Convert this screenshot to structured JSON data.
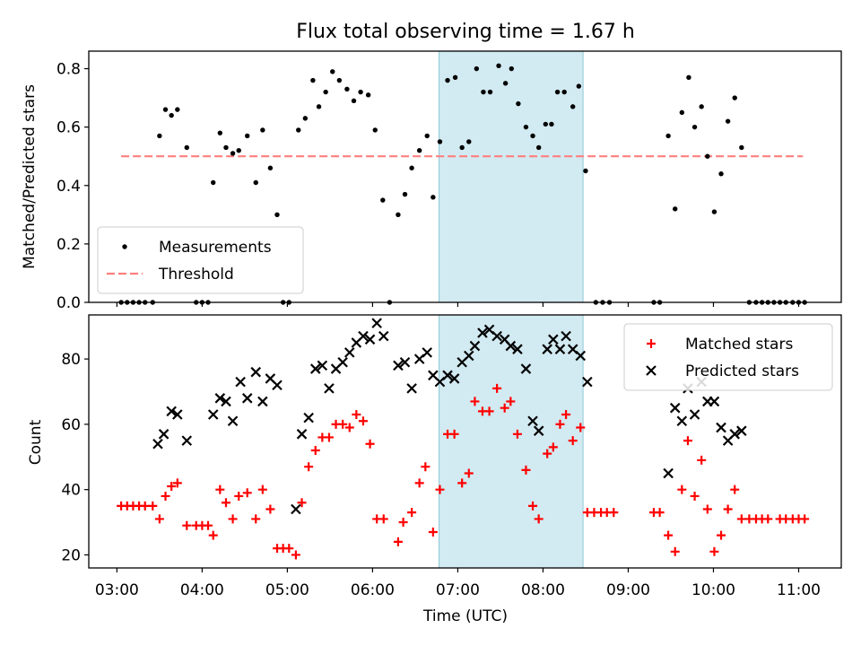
{
  "chart_data": [
    {
      "type": "scatter",
      "title": "Flux total observing time = 1.67 h",
      "xlabel": "",
      "ylabel": "Matched/Predicted stars",
      "ylim": [
        0,
        0.86
      ],
      "yticks": [
        0.0,
        0.2,
        0.4,
        0.6,
        0.8
      ],
      "ytick_labels": [
        "0.0",
        "0.2",
        "0.4",
        "0.6",
        "0.8"
      ],
      "xlim": [
        2.67,
        11.5
      ],
      "xticks": [
        3,
        4,
        5,
        6,
        7,
        8,
        9,
        10,
        11
      ],
      "shaded_span": {
        "x0": 6.78,
        "x1": 8.47,
        "color": "#add8e6"
      },
      "legend": {
        "placement": "lower-left",
        "entries": [
          "Measurements",
          "Threshold"
        ]
      },
      "threshold": {
        "name": "Threshold",
        "value": 0.5,
        "x_range": [
          3.05,
          11.05
        ],
        "color": "#ff7f7f"
      },
      "series": [
        {
          "name": "Measurements",
          "color": "#000000",
          "points": [
            [
              3.05,
              0
            ],
            [
              3.12,
              0
            ],
            [
              3.19,
              0
            ],
            [
              3.26,
              0
            ],
            [
              3.33,
              0
            ],
            [
              3.42,
              0
            ],
            [
              3.5,
              0.57
            ],
            [
              3.57,
              0.66
            ],
            [
              3.64,
              0.64
            ],
            [
              3.71,
              0.66
            ],
            [
              3.82,
              0.53
            ],
            [
              3.93,
              0
            ],
            [
              4.0,
              0
            ],
            [
              4.07,
              0
            ],
            [
              4.13,
              0.41
            ],
            [
              4.21,
              0.58
            ],
            [
              4.28,
              0.53
            ],
            [
              4.36,
              0.51
            ],
            [
              4.43,
              0.52
            ],
            [
              4.53,
              0.57
            ],
            [
              4.63,
              0.41
            ],
            [
              4.71,
              0.59
            ],
            [
              4.8,
              0.46
            ],
            [
              4.88,
              0.3
            ],
            [
              4.95,
              0
            ],
            [
              5.02,
              0
            ],
            [
              5.13,
              0.59
            ],
            [
              5.21,
              0.63
            ],
            [
              5.3,
              0.76
            ],
            [
              5.37,
              0.67
            ],
            [
              5.45,
              0.72
            ],
            [
              5.53,
              0.79
            ],
            [
              5.61,
              0.76
            ],
            [
              5.7,
              0.73
            ],
            [
              5.78,
              0.69
            ],
            [
              5.86,
              0.72
            ],
            [
              5.95,
              0.71
            ],
            [
              6.03,
              0.59
            ],
            [
              6.12,
              0.35
            ],
            [
              6.2,
              0
            ],
            [
              6.3,
              0.3
            ],
            [
              6.38,
              0.37
            ],
            [
              6.46,
              0.46
            ],
            [
              6.55,
              0.52
            ],
            [
              6.64,
              0.57
            ],
            [
              6.71,
              0.36
            ],
            [
              6.79,
              0.55
            ],
            [
              6.88,
              0.76
            ],
            [
              6.97,
              0.77
            ],
            [
              7.05,
              0.53
            ],
            [
              7.13,
              0.55
            ],
            [
              7.22,
              0.8
            ],
            [
              7.3,
              0.72
            ],
            [
              7.38,
              0.72
            ],
            [
              7.48,
              0.81
            ],
            [
              7.56,
              0.75
            ],
            [
              7.63,
              0.8
            ],
            [
              7.71,
              0.68
            ],
            [
              7.8,
              0.6
            ],
            [
              7.88,
              0.57
            ],
            [
              7.95,
              0.53
            ],
            [
              8.03,
              0.61
            ],
            [
              8.1,
              0.61
            ],
            [
              8.17,
              0.72
            ],
            [
              8.25,
              0.72
            ],
            [
              8.35,
              0.67
            ],
            [
              8.42,
              0.74
            ],
            [
              8.5,
              0.45
            ],
            [
              8.62,
              0
            ],
            [
              8.7,
              0
            ],
            [
              8.78,
              0
            ],
            [
              9.3,
              0
            ],
            [
              9.37,
              0
            ],
            [
              9.47,
              0.57
            ],
            [
              9.55,
              0.32
            ],
            [
              9.63,
              0.65
            ],
            [
              9.71,
              0.77
            ],
            [
              9.78,
              0.6
            ],
            [
              9.86,
              0.67
            ],
            [
              9.93,
              0.5
            ],
            [
              10.01,
              0.31
            ],
            [
              10.09,
              0.44
            ],
            [
              10.17,
              0.62
            ],
            [
              10.25,
              0.7
            ],
            [
              10.33,
              0.53
            ],
            [
              10.42,
              0
            ],
            [
              10.5,
              0
            ],
            [
              10.57,
              0
            ],
            [
              10.64,
              0
            ],
            [
              10.71,
              0
            ],
            [
              10.78,
              0
            ],
            [
              10.85,
              0
            ],
            [
              10.93,
              0
            ],
            [
              11.0,
              0
            ],
            [
              11.07,
              0
            ]
          ]
        }
      ]
    },
    {
      "type": "scatter",
      "title": "",
      "xlabel": "Time (UTC)",
      "ylabel": "Count",
      "ylim": [
        16,
        93.5
      ],
      "yticks": [
        20,
        40,
        60,
        80
      ],
      "ytick_labels": [
        "20",
        "40",
        "60",
        "80"
      ],
      "xlim": [
        2.67,
        11.5
      ],
      "xticks": [
        3,
        4,
        5,
        6,
        7,
        8,
        9,
        10,
        11
      ],
      "xtick_labels": [
        "03:00",
        "04:00",
        "05:00",
        "06:00",
        "07:00",
        "08:00",
        "09:00",
        "10:00",
        "11:00"
      ],
      "shaded_span": {
        "x0": 6.78,
        "x1": 8.47,
        "color": "#add8e6"
      },
      "legend": {
        "placement": "top-right",
        "entries": [
          "Matched stars",
          "Predicted stars"
        ]
      },
      "series": [
        {
          "name": "Matched stars",
          "color": "#ff0000",
          "marker": "plus",
          "points": [
            [
              3.05,
              35
            ],
            [
              3.12,
              35
            ],
            [
              3.19,
              35
            ],
            [
              3.26,
              35
            ],
            [
              3.33,
              35
            ],
            [
              3.42,
              35
            ],
            [
              3.5,
              31
            ],
            [
              3.57,
              38
            ],
            [
              3.64,
              41
            ],
            [
              3.71,
              42
            ],
            [
              3.82,
              29
            ],
            [
              3.93,
              29
            ],
            [
              4.0,
              29
            ],
            [
              4.07,
              29
            ],
            [
              4.13,
              26
            ],
            [
              4.21,
              40
            ],
            [
              4.28,
              36
            ],
            [
              4.36,
              31
            ],
            [
              4.43,
              38
            ],
            [
              4.53,
              39
            ],
            [
              4.63,
              31
            ],
            [
              4.71,
              40
            ],
            [
              4.8,
              34
            ],
            [
              4.88,
              22
            ],
            [
              4.95,
              22
            ],
            [
              5.02,
              22
            ],
            [
              5.1,
              20
            ],
            [
              5.17,
              36
            ],
            [
              5.25,
              47
            ],
            [
              5.33,
              52
            ],
            [
              5.41,
              56
            ],
            [
              5.49,
              56
            ],
            [
              5.57,
              60
            ],
            [
              5.65,
              60
            ],
            [
              5.73,
              59
            ],
            [
              5.81,
              63
            ],
            [
              5.89,
              61
            ],
            [
              5.97,
              54
            ],
            [
              6.05,
              31
            ],
            [
              6.13,
              31
            ],
            [
              6.3,
              24
            ],
            [
              6.36,
              30
            ],
            [
              6.46,
              33
            ],
            [
              6.55,
              42
            ],
            [
              6.62,
              47
            ],
            [
              6.71,
              27
            ],
            [
              6.79,
              40
            ],
            [
              6.88,
              57
            ],
            [
              6.96,
              57
            ],
            [
              7.05,
              42
            ],
            [
              7.13,
              45
            ],
            [
              7.2,
              67
            ],
            [
              7.29,
              64
            ],
            [
              7.37,
              64
            ],
            [
              7.46,
              71
            ],
            [
              7.55,
              65
            ],
            [
              7.62,
              67
            ],
            [
              7.7,
              57
            ],
            [
              7.8,
              46
            ],
            [
              7.88,
              35
            ],
            [
              7.95,
              31
            ],
            [
              8.05,
              51
            ],
            [
              8.12,
              53
            ],
            [
              8.2,
              60
            ],
            [
              8.27,
              63
            ],
            [
              8.35,
              55
            ],
            [
              8.44,
              59
            ],
            [
              8.52,
              33
            ],
            [
              8.6,
              33
            ],
            [
              8.68,
              33
            ],
            [
              8.75,
              33
            ],
            [
              8.83,
              33
            ],
            [
              9.3,
              33
            ],
            [
              9.37,
              33
            ],
            [
              9.47,
              26
            ],
            [
              9.55,
              21
            ],
            [
              9.63,
              40
            ],
            [
              9.7,
              55
            ],
            [
              9.78,
              38
            ],
            [
              9.86,
              49
            ],
            [
              9.93,
              34
            ],
            [
              10.01,
              21
            ],
            [
              10.09,
              26
            ],
            [
              10.17,
              34
            ],
            [
              10.25,
              40
            ],
            [
              10.33,
              31
            ],
            [
              10.42,
              31
            ],
            [
              10.5,
              31
            ],
            [
              10.57,
              31
            ],
            [
              10.64,
              31
            ],
            [
              10.78,
              31
            ],
            [
              10.85,
              31
            ],
            [
              10.93,
              31
            ],
            [
              11.0,
              31
            ],
            [
              11.07,
              31
            ]
          ]
        },
        {
          "name": "Predicted stars",
          "color": "#000000",
          "marker": "x",
          "points": [
            [
              3.48,
              54
            ],
            [
              3.55,
              57
            ],
            [
              3.64,
              64
            ],
            [
              3.71,
              63
            ],
            [
              3.82,
              55
            ],
            [
              4.13,
              63
            ],
            [
              4.21,
              68
            ],
            [
              4.28,
              67
            ],
            [
              4.36,
              61
            ],
            [
              4.45,
              73
            ],
            [
              4.53,
              68
            ],
            [
              4.63,
              76
            ],
            [
              4.71,
              67
            ],
            [
              4.8,
              74
            ],
            [
              4.88,
              72
            ],
            [
              5.1,
              34
            ],
            [
              5.17,
              57
            ],
            [
              5.25,
              62
            ],
            [
              5.33,
              77
            ],
            [
              5.41,
              78
            ],
            [
              5.49,
              71
            ],
            [
              5.57,
              77
            ],
            [
              5.65,
              79
            ],
            [
              5.73,
              82
            ],
            [
              5.81,
              85
            ],
            [
              5.89,
              87
            ],
            [
              5.97,
              86
            ],
            [
              6.05,
              91
            ],
            [
              6.13,
              87
            ],
            [
              6.3,
              78
            ],
            [
              6.38,
              79
            ],
            [
              6.46,
              71
            ],
            [
              6.55,
              80
            ],
            [
              6.64,
              82
            ],
            [
              6.71,
              75
            ],
            [
              6.79,
              73
            ],
            [
              6.88,
              75
            ],
            [
              6.96,
              74
            ],
            [
              7.05,
              79
            ],
            [
              7.13,
              81
            ],
            [
              7.2,
              84
            ],
            [
              7.29,
              88
            ],
            [
              7.37,
              89
            ],
            [
              7.46,
              87
            ],
            [
              7.55,
              86
            ],
            [
              7.62,
              84
            ],
            [
              7.7,
              83
            ],
            [
              7.8,
              77
            ],
            [
              7.88,
              61
            ],
            [
              7.95,
              58
            ],
            [
              8.05,
              83
            ],
            [
              8.12,
              86
            ],
            [
              8.2,
              83
            ],
            [
              8.27,
              87
            ],
            [
              8.35,
              83
            ],
            [
              8.44,
              81
            ],
            [
              8.52,
              73
            ],
            [
              9.47,
              45
            ],
            [
              9.55,
              65
            ],
            [
              9.63,
              61
            ],
            [
              9.7,
              71
            ],
            [
              9.78,
              63
            ],
            [
              9.86,
              73
            ],
            [
              9.93,
              67
            ],
            [
              10.01,
              67
            ],
            [
              10.09,
              59
            ],
            [
              10.17,
              55
            ],
            [
              10.25,
              57
            ],
            [
              10.33,
              58
            ]
          ]
        }
      ]
    }
  ]
}
